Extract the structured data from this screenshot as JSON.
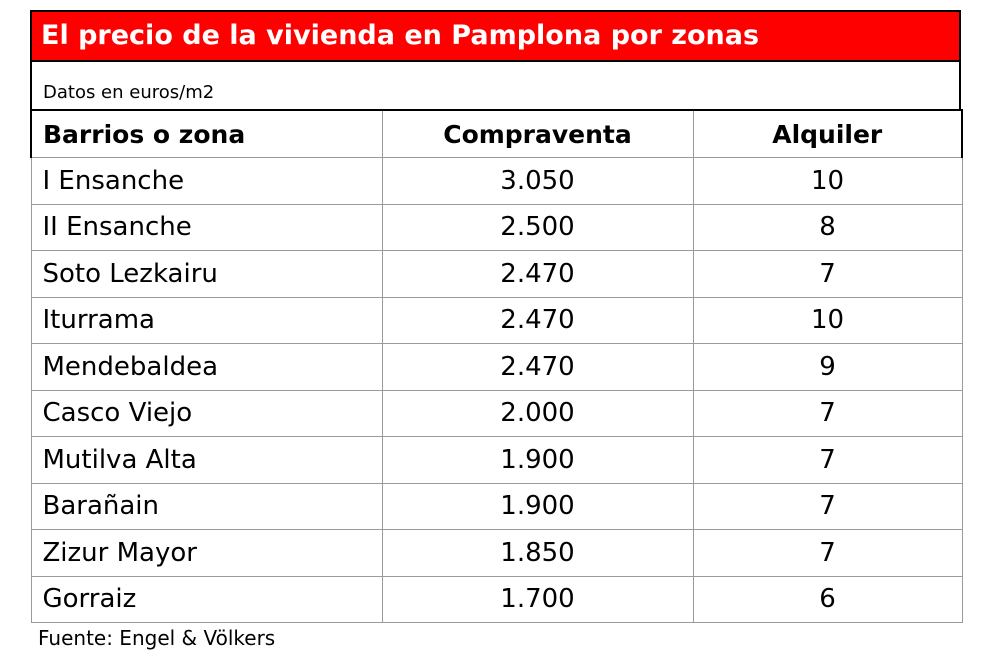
{
  "chart_data": {
    "type": "table",
    "title": "El precio de la vivienda en Pamplona por zonas",
    "subtitle": "Datos en euros/m2",
    "columns": [
      "Barrios o zona",
      "Compraventa",
      "Alquiler"
    ],
    "rows": [
      [
        "I Ensanche",
        "3.050",
        "10"
      ],
      [
        "II Ensanche",
        "2.500",
        "8"
      ],
      [
        "Soto Lezkairu",
        "2.470",
        "7"
      ],
      [
        "Iturrama",
        "2.470",
        "10"
      ],
      [
        "Mendebaldea",
        "2.470",
        "9"
      ],
      [
        "Casco Viejo",
        "2.000",
        "7"
      ],
      [
        "Mutilva Alta",
        "1.900",
        "7"
      ],
      [
        "Barañain",
        "1.900",
        "7"
      ],
      [
        "Zizur Mayor",
        "1.850",
        "7"
      ],
      [
        "Gorraiz",
        "1.700",
        "6"
      ]
    ],
    "source": "Fuente: Engel & Völkers"
  },
  "colors": {
    "title_bg": "#ff0000",
    "title_text": "#ffffff",
    "grid": "#9a9a9a"
  }
}
